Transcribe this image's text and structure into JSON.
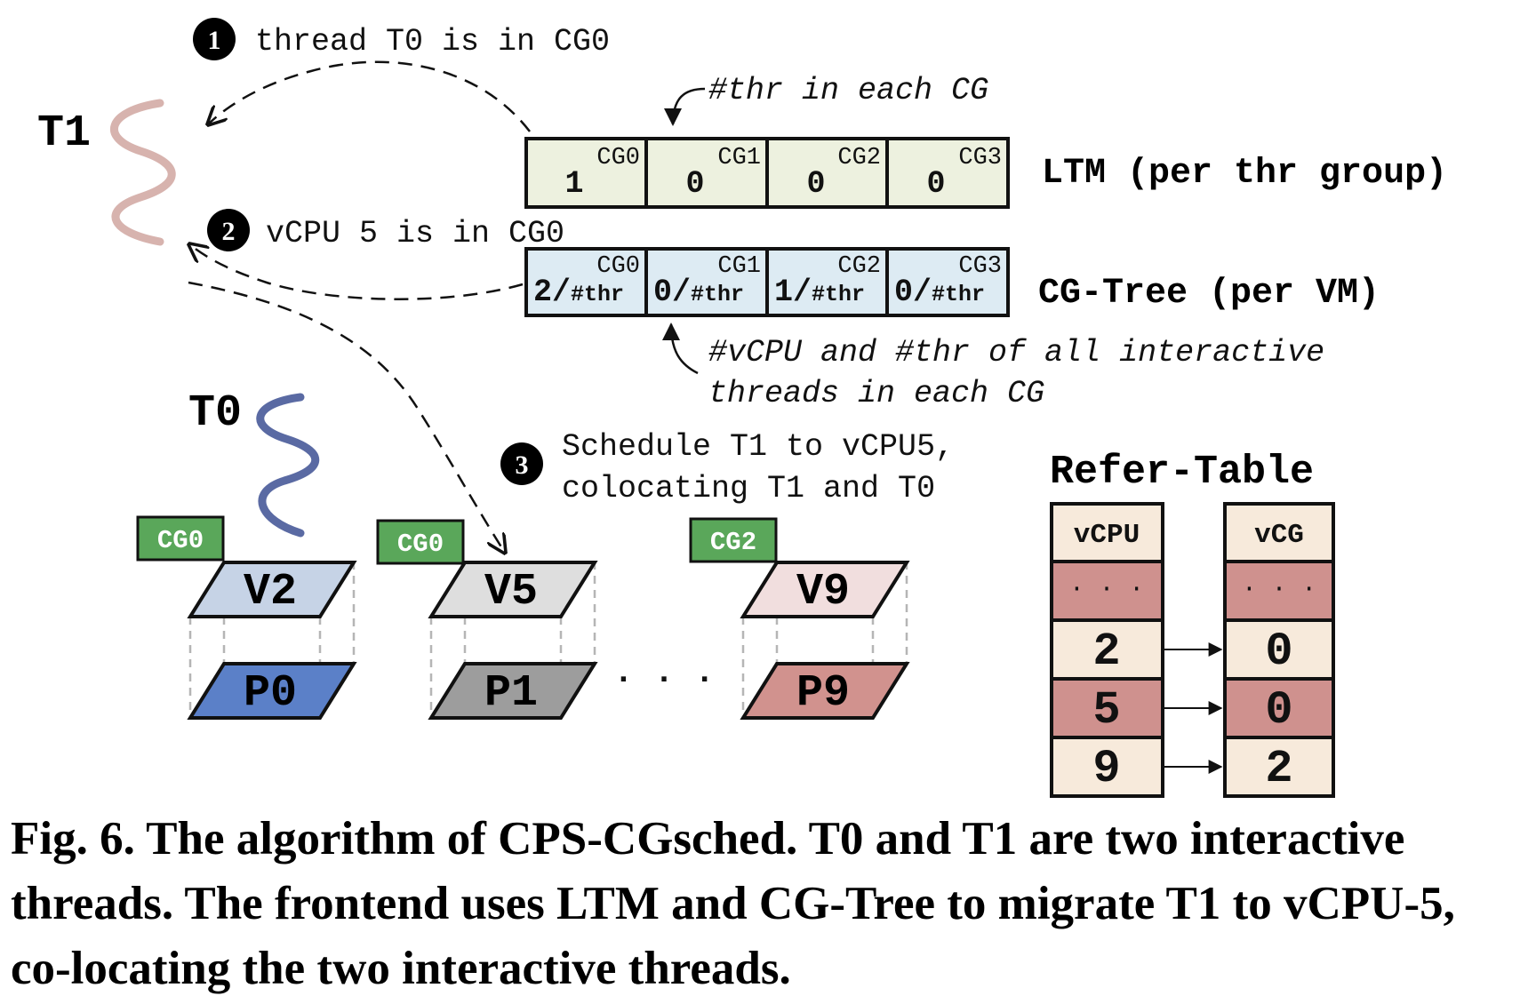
{
  "steps": [
    {
      "num": "1",
      "text": "thread T0 is in CG0"
    },
    {
      "num": "2",
      "text": "vCPU 5 is in CG0"
    },
    {
      "num": "3",
      "lines": [
        "Schedule T1 to vCPU5,",
        "colocating T1 and T0"
      ]
    }
  ],
  "threads": {
    "t1": "T1",
    "t0": "T0"
  },
  "ltm": {
    "label": "LTM (per thr group)",
    "annotation": "#thr in each CG",
    "cells": [
      {
        "cg": "CG0",
        "value": "1"
      },
      {
        "cg": "CG1",
        "value": "0"
      },
      {
        "cg": "CG2",
        "value": "0"
      },
      {
        "cg": "CG3",
        "value": "0"
      }
    ]
  },
  "cgtree": {
    "label": "CG-Tree (per VM)",
    "annotation_lines": [
      "#vCPU and #thr of all interactive",
      "threads in each CG"
    ],
    "cells": [
      {
        "cg": "CG0",
        "num": "2/",
        "den": "#thr"
      },
      {
        "cg": "CG1",
        "num": "0/",
        "den": "#thr"
      },
      {
        "cg": "CG2",
        "num": "1/",
        "den": "#thr"
      },
      {
        "cg": "CG3",
        "num": "0/",
        "den": "#thr"
      }
    ]
  },
  "cpus": [
    {
      "tag": "CG0",
      "vcpu": "V2",
      "pcpu": "P0",
      "v_color": "#c6d3e6",
      "p_color": "#5b80c8"
    },
    {
      "tag": "CG0",
      "vcpu": "V5",
      "pcpu": "P1",
      "v_color": "#dedede",
      "p_color": "#9d9d9d"
    },
    {
      "tag": "CG2",
      "vcpu": "V9",
      "pcpu": "P9",
      "v_color": "#f1dede",
      "p_color": "#d1928e"
    }
  ],
  "ellipsis": "· · ·",
  "refer_table": {
    "title": "Refer-Table",
    "headers": [
      "vCPU",
      "vCG"
    ],
    "rows": [
      {
        "vcpu": "· · ·",
        "vcg": "· · ·"
      },
      {
        "vcpu": "2",
        "vcg": "0"
      },
      {
        "vcpu": "5",
        "vcg": "0"
      },
      {
        "vcpu": "9",
        "vcg": "2"
      }
    ]
  },
  "colors": {
    "ltm_cell": "#edf1df",
    "cgtree_cell": "#ddebf3",
    "tag_green": "#5aa75a",
    "table_light": "#f7eadb",
    "table_dark": "#cf918e",
    "t1_wave": "#d7b3ae",
    "t0_wave": "#5a6aa3"
  },
  "caption": "Fig. 6. The algorithm of CPS-CGsched. T0 and T1 are two interactive threads. The frontend uses LTM and CG-Tree to migrate T1 to vCPU-5, co-locating the two interactive threads."
}
